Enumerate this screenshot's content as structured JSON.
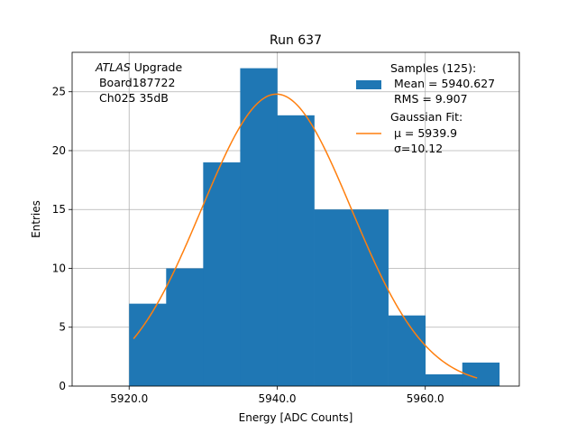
{
  "chart_data": {
    "type": "histogram",
    "title": "Run 637",
    "xlabel": "Energy [ADC Counts]",
    "ylabel": "Entries",
    "xlim": [
      5912.3,
      5972.7
    ],
    "ylim": [
      0,
      28.35
    ],
    "xticks": [
      5920.0,
      5940.0,
      5960.0
    ],
    "xtick_labels": [
      "5920.0",
      "5940.0",
      "5960.0"
    ],
    "yticks": [
      0,
      5,
      10,
      15,
      20,
      25
    ],
    "ytick_labels": [
      "0",
      "5",
      "10",
      "15",
      "20",
      "25"
    ],
    "grid": true,
    "bins": [
      {
        "x0": 5920,
        "x1": 5925,
        "value": 7
      },
      {
        "x0": 5925,
        "x1": 5930,
        "value": 10
      },
      {
        "x0": 5930,
        "x1": 5935,
        "value": 19
      },
      {
        "x0": 5935,
        "x1": 5940,
        "value": 27
      },
      {
        "x0": 5940,
        "x1": 5945,
        "value": 23
      },
      {
        "x0": 5945,
        "x1": 5950,
        "value": 15
      },
      {
        "x0": 5950,
        "x1": 5955,
        "value": 15
      },
      {
        "x0": 5955,
        "x1": 5960,
        "value": 6
      },
      {
        "x0": 5960,
        "x1": 5965,
        "value": 1
      },
      {
        "x0": 5965,
        "x1": 5970,
        "value": 2
      }
    ],
    "fit": {
      "mu": 5939.9,
      "sigma": 10.12,
      "amplitude": 24.8,
      "x_range": [
        5920.6,
        5967.0
      ]
    },
    "colors": {
      "bars": "#1f77b4",
      "fit": "#ff7f0e",
      "grid": "#b0b0b0"
    },
    "annotation_lines": [
      "Upgrade",
      " Board187722",
      " Ch025 35dB"
    ],
    "annotation_italic": "ATLAS",
    "legend": {
      "placement": "top-right",
      "samples_lines": [
        "Samples (125):",
        " Mean = 5940.627",
        " RMS = 9.907"
      ],
      "fit_lines": [
        "Gaussian Fit:",
        " μ = 5939.9",
        " σ=10.12"
      ]
    }
  }
}
